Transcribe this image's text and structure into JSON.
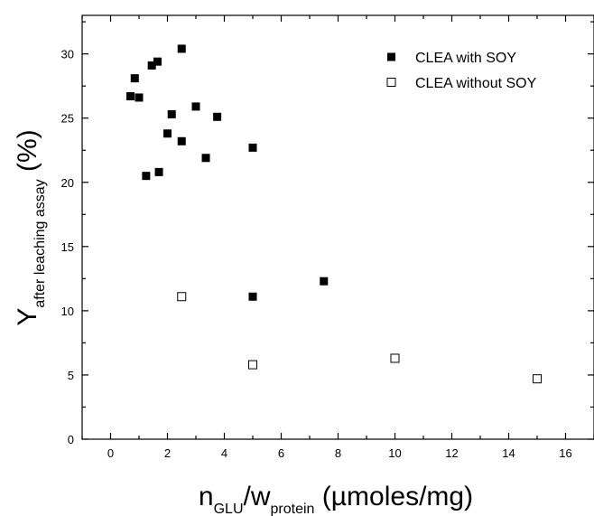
{
  "chart_data": {
    "type": "scatter",
    "title": "",
    "xlabel": {
      "parts": [
        {
          "text": "n",
          "style": "normal"
        },
        {
          "text": "GLU",
          "style": "sub"
        },
        {
          "text": "/w",
          "style": "normal"
        },
        {
          "text": "protein",
          "style": "sub"
        },
        {
          "text": " (µmoles/mg)",
          "style": "normal"
        }
      ]
    },
    "ylabel": {
      "parts": [
        {
          "text": "Y",
          "style": "normal"
        },
        {
          "text": "after leaching assay",
          "style": "sub"
        },
        {
          "text": " (%)",
          "style": "normal"
        }
      ]
    },
    "xlim": [
      -1,
      17
    ],
    "ylim": [
      0,
      33
    ],
    "xticks": [
      0,
      2,
      4,
      6,
      8,
      10,
      12,
      14,
      16
    ],
    "yticks": [
      0,
      5,
      10,
      15,
      20,
      25,
      30
    ],
    "grid": false,
    "legend_position": "top-right",
    "series": [
      {
        "name": "CLEA with SOY",
        "marker": "filled-square",
        "color": "#000000",
        "points": [
          [
            0.7,
            26.7
          ],
          [
            0.85,
            28.1
          ],
          [
            1.0,
            26.6
          ],
          [
            1.25,
            20.5
          ],
          [
            1.45,
            29.1
          ],
          [
            1.65,
            29.4
          ],
          [
            1.7,
            20.8
          ],
          [
            2.0,
            23.8
          ],
          [
            2.15,
            25.3
          ],
          [
            2.5,
            30.4
          ],
          [
            2.5,
            23.2
          ],
          [
            3.0,
            25.9
          ],
          [
            3.35,
            21.9
          ],
          [
            3.75,
            25.1
          ],
          [
            5.0,
            22.7
          ],
          [
            5.0,
            11.1
          ],
          [
            7.5,
            12.3
          ]
        ]
      },
      {
        "name": "CLEA without SOY",
        "marker": "open-square",
        "color": "#000000",
        "points": [
          [
            2.5,
            11.1
          ],
          [
            5.0,
            5.8
          ],
          [
            10.0,
            6.3
          ],
          [
            15.0,
            4.7
          ]
        ]
      }
    ]
  }
}
